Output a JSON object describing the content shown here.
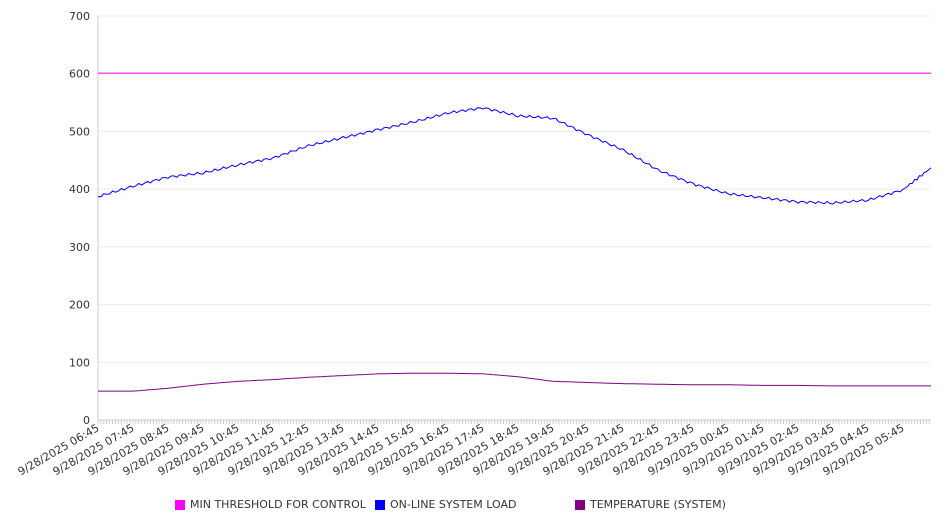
{
  "chart_data": {
    "type": "line",
    "title": "",
    "xlabel": "",
    "ylabel": "",
    "ylim": [
      0,
      700
    ],
    "yticks": [
      0,
      100,
      200,
      300,
      400,
      500,
      600,
      700
    ],
    "grid": true,
    "legend_position": "bottom",
    "x_tick_labels": [
      "9/28/2025 06:45",
      "9/28/2025 07:45",
      "9/28/2025 08:45",
      "9/28/2025 09:45",
      "9/28/2025 10:45",
      "9/28/2025 11:45",
      "9/28/2025 12:45",
      "9/28/2025 13:45",
      "9/28/2025 14:45",
      "9/28/2025 15:45",
      "9/28/2025 16:45",
      "9/28/2025 17:45",
      "9/28/2025 18:45",
      "9/28/2025 19:45",
      "9/28/2025 20:45",
      "9/28/2025 21:45",
      "9/28/2025 22:45",
      "9/28/2025 23:45",
      "9/29/2025 00:45",
      "9/29/2025 01:45",
      "9/29/2025 02:45",
      "9/29/2025 03:45",
      "9/29/2025 04:45",
      "9/29/2025 05:45"
    ],
    "x_hours": [
      0,
      1,
      2,
      3,
      4,
      5,
      6,
      7,
      8,
      9,
      10,
      11,
      12,
      13,
      14,
      15,
      16,
      17,
      18,
      19,
      20,
      21,
      22,
      23,
      23.8
    ],
    "x_max_hours": 23.8,
    "series": [
      {
        "name": "MIN THRESHOLD FOR CONTROL",
        "color": "#ff00ff",
        "values": [
          601,
          601,
          601,
          601,
          601,
          601,
          601,
          601,
          601,
          601,
          601,
          601,
          601,
          601,
          601,
          601,
          601,
          601,
          601,
          601,
          601,
          601,
          601,
          601,
          601
        ]
      },
      {
        "name": "ON-LINE SYSTEM LOAD",
        "color": "#0000ff",
        "values": [
          387,
          405,
          421,
          428,
          442,
          454,
          475,
          489,
          503,
          516,
          532,
          541,
          527,
          523,
          494,
          468,
          433,
          409,
          392,
          385,
          378,
          376,
          381,
          399,
          437
        ]
      },
      {
        "name": "TEMPERATURE (SYSTEM)",
        "color": "#800080",
        "values": [
          50,
          50,
          55,
          62,
          67,
          70,
          74,
          77,
          80,
          81,
          81,
          80,
          75,
          67,
          65,
          63,
          62,
          61,
          61,
          60,
          60,
          59,
          59,
          59,
          59
        ]
      }
    ]
  }
}
